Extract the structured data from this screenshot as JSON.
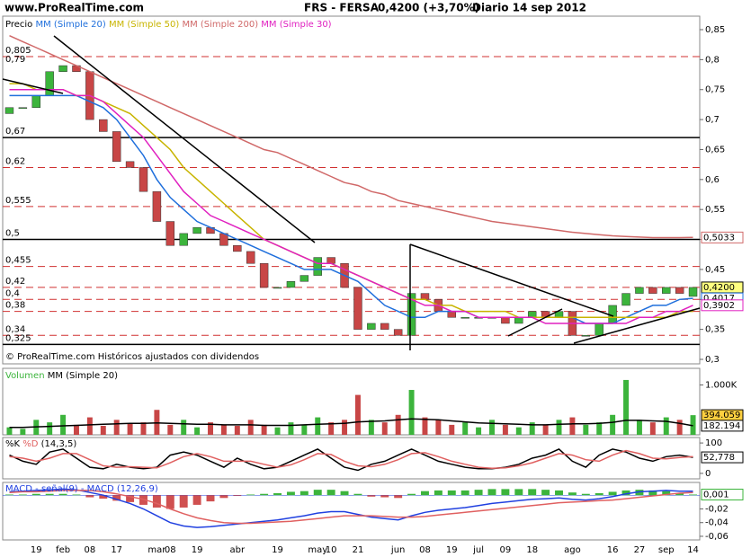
{
  "header": {
    "site": "www.ProRealTime.com",
    "symbol": "FRS - FERSA",
    "quote": "0,4200 (+3,70%)",
    "period": "Diario 14 sep 2012"
  },
  "footer": "© ProRealTime.com Históricos ajustados con dividendos",
  "chart_data": [
    {
      "type": "candlestick",
      "legend_title": "Precio",
      "categories": [
        null,
        null,
        "19",
        null,
        "feb",
        null,
        "08",
        null,
        "17",
        null,
        null,
        "mar",
        "08",
        null,
        "19",
        null,
        null,
        "abr",
        null,
        null,
        "19",
        null,
        null,
        "may",
        "10",
        null,
        "21",
        null,
        null,
        "jun",
        null,
        "08",
        null,
        "19",
        null,
        "jul",
        null,
        "09",
        null,
        "18",
        null,
        null,
        "ago",
        null,
        null,
        "16",
        null,
        "27",
        null,
        "sep",
        null,
        "14"
      ],
      "open": [
        0.71,
        0.72,
        0.72,
        0.74,
        0.78,
        0.79,
        0.78,
        0.7,
        0.68,
        0.63,
        0.62,
        0.58,
        0.53,
        0.49,
        0.51,
        0.52,
        0.51,
        0.49,
        0.48,
        0.46,
        0.42,
        0.42,
        0.43,
        0.44,
        0.47,
        0.46,
        0.42,
        0.35,
        0.36,
        0.35,
        0.34,
        0.41,
        0.4,
        0.38,
        0.37,
        0.37,
        0.37,
        0.37,
        0.36,
        0.37,
        0.38,
        0.37,
        0.38,
        0.34,
        0.34,
        0.36,
        0.39,
        0.41,
        0.42,
        0.41,
        0.42,
        0.405
      ],
      "close": [
        0.72,
        0.72,
        0.74,
        0.78,
        0.79,
        0.78,
        0.7,
        0.68,
        0.63,
        0.62,
        0.58,
        0.53,
        0.49,
        0.51,
        0.52,
        0.51,
        0.49,
        0.48,
        0.46,
        0.42,
        0.42,
        0.43,
        0.44,
        0.47,
        0.46,
        0.42,
        0.35,
        0.36,
        0.35,
        0.34,
        0.41,
        0.4,
        0.38,
        0.37,
        0.37,
        0.37,
        0.37,
        0.36,
        0.37,
        0.38,
        0.37,
        0.38,
        0.34,
        0.34,
        0.36,
        0.39,
        0.41,
        0.42,
        0.41,
        0.42,
        0.41,
        0.42
      ],
      "up_color": "#3cb43c",
      "down_color": "#c84646",
      "series": [
        {
          "name": "MM (Simple 20)",
          "color": "#1f6fdc",
          "values": [
            0.74,
            0.74,
            0.74,
            0.74,
            0.74,
            0.74,
            0.73,
            0.72,
            0.7,
            0.67,
            0.64,
            0.6,
            0.57,
            0.55,
            0.53,
            0.52,
            0.51,
            0.5,
            0.49,
            0.48,
            0.47,
            0.46,
            0.45,
            0.45,
            0.45,
            0.44,
            0.43,
            0.41,
            0.39,
            0.38,
            0.37,
            0.37,
            0.38,
            0.38,
            0.38,
            0.37,
            0.37,
            0.37,
            0.37,
            0.37,
            0.37,
            0.37,
            0.37,
            0.36,
            0.36,
            0.36,
            0.37,
            0.38,
            0.39,
            0.39,
            0.4,
            0.4017
          ]
        },
        {
          "name": "MM (Simple 50)",
          "color": "#c8b400",
          "values": [
            0.76,
            0.76,
            0.75,
            0.75,
            0.75,
            0.74,
            0.74,
            0.73,
            0.72,
            0.71,
            0.69,
            0.67,
            0.65,
            0.62,
            0.6,
            0.58,
            0.56,
            0.54,
            0.52,
            0.5,
            0.49,
            0.48,
            0.47,
            0.46,
            0.46,
            0.45,
            0.44,
            0.43,
            0.42,
            0.41,
            0.4,
            0.4,
            0.39,
            0.39,
            0.38,
            0.38,
            0.38,
            0.38,
            0.37,
            0.37,
            0.37,
            0.37,
            0.37,
            0.37,
            0.37,
            0.37,
            0.37,
            0.37,
            0.37,
            0.37,
            0.38,
            0.38
          ]
        },
        {
          "name": "MM (Simple 200)",
          "color": "#d06868",
          "values": [
            0.84,
            0.83,
            0.82,
            0.81,
            0.8,
            0.79,
            0.78,
            0.77,
            0.76,
            0.75,
            0.74,
            0.73,
            0.72,
            0.71,
            0.7,
            0.69,
            0.68,
            0.67,
            0.66,
            0.65,
            0.645,
            0.635,
            0.625,
            0.615,
            0.605,
            0.595,
            0.59,
            0.58,
            0.575,
            0.565,
            0.56,
            0.555,
            0.55,
            0.545,
            0.54,
            0.535,
            0.53,
            0.527,
            0.524,
            0.521,
            0.518,
            0.515,
            0.512,
            0.51,
            0.508,
            0.506,
            0.505,
            0.504,
            0.503,
            0.503,
            0.503,
            0.5033
          ]
        },
        {
          "name": "MM (Simple 30)",
          "color": "#e020c0",
          "values": [
            0.75,
            0.75,
            0.75,
            0.75,
            0.75,
            0.74,
            0.74,
            0.73,
            0.71,
            0.69,
            0.67,
            0.64,
            0.61,
            0.58,
            0.56,
            0.54,
            0.53,
            0.52,
            0.51,
            0.5,
            0.49,
            0.48,
            0.47,
            0.46,
            0.46,
            0.45,
            0.44,
            0.43,
            0.42,
            0.41,
            0.4,
            0.39,
            0.39,
            0.38,
            0.38,
            0.37,
            0.37,
            0.37,
            0.37,
            0.37,
            0.36,
            0.36,
            0.36,
            0.36,
            0.36,
            0.36,
            0.36,
            0.37,
            0.37,
            0.38,
            0.38,
            0.3902
          ]
        }
      ],
      "ylim": [
        0.2925,
        0.8725
      ],
      "yticks": [
        {
          "value": 0.85,
          "label": "0,85"
        },
        {
          "value": 0.8,
          "label": "0,8"
        },
        {
          "value": 0.75,
          "label": "0,75"
        },
        {
          "value": 0.7,
          "label": "0,7"
        },
        {
          "value": 0.65,
          "label": "0,65"
        },
        {
          "value": 0.6,
          "label": "0,6"
        },
        {
          "value": 0.55,
          "label": "0,55"
        },
        {
          "value": 0.5,
          "label": "0,5"
        },
        {
          "value": 0.45,
          "label": "0,45"
        },
        {
          "value": 0.4,
          "label": "0,4"
        },
        {
          "value": 0.35,
          "label": "0,35"
        },
        {
          "value": 0.3,
          "label": "0,3"
        }
      ],
      "levels": [
        {
          "value": 0.805,
          "label": "0,805",
          "style": "dashed"
        },
        {
          "value": 0.79,
          "label": "0,79",
          "style": "none"
        },
        {
          "value": 0.67,
          "label": "0,67",
          "style": "solid"
        },
        {
          "value": 0.62,
          "label": "0,62",
          "style": "dashed"
        },
        {
          "value": 0.555,
          "label": "0,555",
          "style": "dashed"
        },
        {
          "value": 0.5,
          "label": "0,5",
          "style": "solid"
        },
        {
          "value": 0.455,
          "label": "0,455",
          "style": "dashed"
        },
        {
          "value": 0.42,
          "label": "0,42",
          "style": "dashed"
        },
        {
          "value": 0.4,
          "label": "0,4",
          "style": "dashed"
        },
        {
          "value": 0.38,
          "label": "0,38",
          "style": "dashed"
        },
        {
          "value": 0.34,
          "label": "0,34",
          "style": "dashed"
        },
        {
          "value": 0.325,
          "label": "0,325",
          "style": "solid"
        }
      ],
      "tags": [
        {
          "value": 0.5033,
          "label": "0,5033",
          "color": "#d06868",
          "background": "#ffffff"
        },
        {
          "value": 0.42,
          "label": "0,4200",
          "color": "#000000",
          "background": "#ffff80"
        },
        {
          "value": 0.4017,
          "label": "0,4017",
          "color": "#1f6fdc",
          "background": "#ffffff"
        },
        {
          "value": 0.3902,
          "label": "0,3902",
          "color": "#e020c0",
          "background": "#ffffff"
        }
      ]
    },
    {
      "type": "bar",
      "title": "Volumen",
      "title_color": "#3cb43c",
      "values": [
        150,
        120,
        300,
        250,
        400,
        200,
        350,
        180,
        300,
        220,
        250,
        500,
        200,
        300,
        150,
        250,
        200,
        180,
        300,
        200,
        150,
        250,
        200,
        350,
        250,
        300,
        800,
        300,
        250,
        400,
        900,
        350,
        300,
        200,
        250,
        150,
        300,
        200,
        150,
        250,
        200,
        300,
        350,
        200,
        250,
        400,
        1100,
        300,
        250,
        350,
        300,
        394.059
      ],
      "ma": {
        "name": "MM (Simple 20)",
        "color": "#000000",
        "values": [
          150,
          150,
          160,
          170,
          180,
          190,
          200,
          210,
          220,
          230,
          230,
          240,
          230,
          220,
          210,
          210,
          200,
          200,
          200,
          190,
          190,
          190,
          200,
          210,
          220,
          230,
          260,
          270,
          280,
          300,
          320,
          310,
          300,
          280,
          260,
          240,
          230,
          220,
          210,
          200,
          200,
          210,
          220,
          220,
          230,
          250,
          290,
          290,
          280,
          270,
          230,
          182.194
        ]
      },
      "ylim": [
        0,
        1333
      ],
      "yticks": [
        {
          "value": 1000,
          "label": "1.000K"
        }
      ],
      "tags": [
        {
          "value": 394.059,
          "label": "394.059",
          "color": "#000000",
          "background": "#ffd040"
        },
        {
          "value": 182.194,
          "label": "182.194",
          "color": "#000000",
          "background": "#ffffff"
        }
      ]
    },
    {
      "type": "line",
      "params": "(14,3,5)",
      "series": [
        {
          "name": "%K",
          "color": "#000000",
          "values": [
            60,
            40,
            30,
            70,
            80,
            50,
            20,
            15,
            30,
            20,
            15,
            20,
            60,
            70,
            60,
            40,
            20,
            50,
            30,
            15,
            20,
            40,
            60,
            80,
            50,
            20,
            10,
            30,
            40,
            60,
            80,
            60,
            40,
            30,
            20,
            15,
            15,
            20,
            30,
            50,
            60,
            80,
            40,
            20,
            60,
            80,
            70,
            50,
            40,
            55,
            60,
            52.778
          ]
        },
        {
          "name": "%D",
          "color": "#e06060",
          "values": [
            55,
            50,
            40,
            50,
            65,
            65,
            45,
            25,
            20,
            22,
            20,
            18,
            35,
            55,
            65,
            55,
            40,
            40,
            40,
            30,
            20,
            28,
            45,
            65,
            62,
            40,
            25,
            22,
            30,
            45,
            65,
            68,
            55,
            40,
            30,
            20,
            17,
            18,
            25,
            35,
            50,
            65,
            60,
            45,
            40,
            60,
            75,
            65,
            50,
            48,
            52,
            55
          ]
        }
      ],
      "ylim": [
        -18,
        118
      ],
      "yticks": [
        0,
        100
      ],
      "tags": [
        {
          "value": 52.778,
          "label": "52,778",
          "color": "#000000",
          "background": "#ffffff"
        }
      ]
    },
    {
      "type": "line",
      "title": "MACD - señal(9) - MACD (12,26,9)",
      "series": [
        {
          "color": "#2040e0",
          "values": [
            0.005,
            0.006,
            0.007,
            0.008,
            0.009,
            0.008,
            0.004,
            0,
            -0.006,
            -0.012,
            -0.02,
            -0.03,
            -0.04,
            -0.045,
            -0.047,
            -0.046,
            -0.044,
            -0.042,
            -0.04,
            -0.038,
            -0.036,
            -0.033,
            -0.03,
            -0.026,
            -0.024,
            -0.024,
            -0.028,
            -0.032,
            -0.034,
            -0.036,
            -0.03,
            -0.025,
            -0.022,
            -0.02,
            -0.018,
            -0.015,
            -0.012,
            -0.01,
            -0.008,
            -0.006,
            -0.005,
            -0.004,
            -0.006,
            -0.007,
            -0.005,
            -0.002,
            0.002,
            0.005,
            0.006,
            0.007,
            0.006,
            0.006
          ]
        },
        {
          "color": "#e06060",
          "values": [
            0.004,
            0.005,
            0.005,
            0.006,
            0.007,
            0.007,
            0.007,
            0.005,
            0.002,
            -0.002,
            -0.006,
            -0.012,
            -0.02,
            -0.027,
            -0.033,
            -0.037,
            -0.04,
            -0.041,
            -0.041,
            -0.04,
            -0.039,
            -0.038,
            -0.036,
            -0.034,
            -0.032,
            -0.03,
            -0.03,
            -0.03,
            -0.031,
            -0.032,
            -0.032,
            -0.031,
            -0.029,
            -0.027,
            -0.025,
            -0.023,
            -0.021,
            -0.019,
            -0.017,
            -0.015,
            -0.013,
            -0.011,
            -0.01,
            -0.009,
            -0.008,
            -0.007,
            -0.005,
            -0.003,
            -0.001,
            0.001,
            0.003,
            0.004
          ]
        }
      ],
      "histogram": [
        0.001,
        0.001,
        0.002,
        0.002,
        0.002,
        0.001,
        -0.003,
        -0.005,
        -0.008,
        -0.01,
        -0.014,
        -0.018,
        -0.02,
        -0.018,
        -0.014,
        -0.009,
        -0.004,
        -0.001,
        0.001,
        0.002,
        0.003,
        0.005,
        0.006,
        0.008,
        0.008,
        0.006,
        0.002,
        -0.002,
        -0.003,
        -0.004,
        0.002,
        0.006,
        0.007,
        0.007,
        0.007,
        0.008,
        0.009,
        0.009,
        0.009,
        0.009,
        0.008,
        0.007,
        0.004,
        0.002,
        0.003,
        0.005,
        0.007,
        0.008,
        0.007,
        0.006,
        0.003,
        0.001
      ],
      "histogram_colors": {
        "up": "#3cb43c",
        "down": "#d05050"
      },
      "ylim": [
        -0.0653,
        0.0187
      ],
      "yticks": [
        {
          "value": -0.02,
          "label": "-0,02"
        },
        {
          "value": -0.04,
          "label": "-0,04"
        },
        {
          "value": -0.06,
          "label": "-0,06"
        }
      ],
      "tags": [
        {
          "value": 0.001,
          "label": "0,001",
          "color": "#3cb43c",
          "background": "#ffffff"
        }
      ]
    }
  ]
}
